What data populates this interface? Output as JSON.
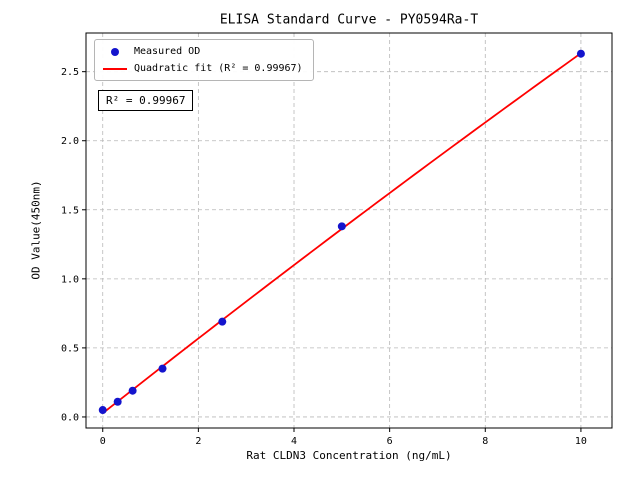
{
  "chart_data": {
    "type": "scatter",
    "title": "ELISA Standard Curve - PY0594Ra-T",
    "xlabel": "Rat CLDN3 Concentration (ng/mL)",
    "ylabel": "OD Value(450nm)",
    "xlim": [
      -0.35,
      10.65
    ],
    "ylim": [
      -0.08,
      2.78
    ],
    "xticks": [
      0,
      2,
      4,
      6,
      8,
      10
    ],
    "xtick_labels": [
      "0",
      "2",
      "4",
      "6",
      "8",
      "10"
    ],
    "yticks": [
      0,
      0.5,
      1.0,
      1.5,
      2.0,
      2.5
    ],
    "ytick_labels": [
      "0.0",
      "0.5",
      "1.0",
      "1.5",
      "2.0",
      "2.5"
    ],
    "grid": true,
    "grid_color": "#b8b8b8",
    "axis_color": "#000000",
    "background_color": "#ffffff",
    "legend_position": "upper-left",
    "annotation": "R² = 0.99967",
    "r_squared": "0.99967",
    "series": [
      {
        "name": "Measured OD",
        "type": "scatter",
        "color": "#1414cd",
        "x": [
          0,
          0.3125,
          0.625,
          1.25,
          2.5,
          5,
          10
        ],
        "y": [
          0.05,
          0.11,
          0.19,
          0.35,
          0.69,
          1.38,
          2.63
        ]
      },
      {
        "name": "Quadratic fit (R² = 0.99967)",
        "type": "line",
        "color": "#ff0000"
      }
    ]
  }
}
